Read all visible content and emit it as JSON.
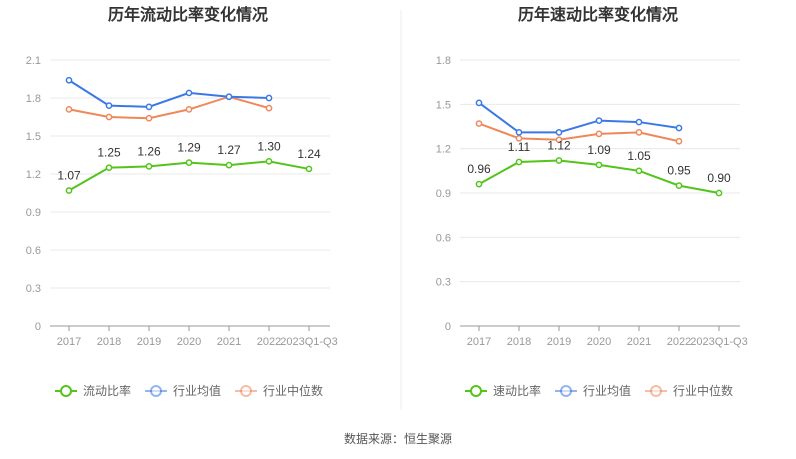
{
  "source": "数据来源：恒生聚源",
  "chart_data": [
    {
      "type": "line",
      "title": "历年流动比率变化情况",
      "categories": [
        "2017",
        "2018",
        "2019",
        "2020",
        "2021",
        "2022",
        "2023Q1-Q3"
      ],
      "ylim": [
        0,
        2.1
      ],
      "yticks": [
        "0",
        "0.3",
        "0.6",
        "0.9",
        "1.2",
        "1.5",
        "1.8",
        "2.1"
      ],
      "grid": true,
      "legend_position": "bottom-left",
      "series": [
        {
          "name": "流动比率",
          "color": "#52c41a",
          "values": [
            1.07,
            1.25,
            1.26,
            1.29,
            1.27,
            1.3,
            1.24
          ],
          "labels": [
            "1.07",
            "1.25",
            "1.26",
            "1.29",
            "1.27",
            "1.30",
            "1.24"
          ]
        },
        {
          "name": "行业均值",
          "color": "#3b78e7",
          "values": [
            1.94,
            1.74,
            1.73,
            1.84,
            1.81,
            1.8,
            null
          ]
        },
        {
          "name": "行业中位数",
          "color": "#f0875a",
          "values": [
            1.71,
            1.65,
            1.64,
            1.71,
            1.81,
            1.72,
            null
          ]
        }
      ]
    },
    {
      "type": "line",
      "title": "历年速动比率变化情况",
      "categories": [
        "2017",
        "2018",
        "2019",
        "2020",
        "2021",
        "2022",
        "2023Q1-Q3"
      ],
      "ylim": [
        0,
        1.8
      ],
      "yticks": [
        "0",
        "0.3",
        "0.6",
        "0.9",
        "1.2",
        "1.5",
        "1.8"
      ],
      "grid": true,
      "legend_position": "bottom-left",
      "series": [
        {
          "name": "速动比率",
          "color": "#52c41a",
          "values": [
            0.96,
            1.11,
            1.12,
            1.09,
            1.05,
            0.95,
            0.9
          ],
          "labels": [
            "0.96",
            "1.11",
            "1.12",
            "1.09",
            "1.05",
            "0.95",
            "0.90"
          ]
        },
        {
          "name": "行业均值",
          "color": "#3b78e7",
          "values": [
            1.51,
            1.31,
            1.31,
            1.39,
            1.38,
            1.34,
            null
          ]
        },
        {
          "name": "行业中位数",
          "color": "#f0875a",
          "values": [
            1.37,
            1.27,
            1.26,
            1.3,
            1.31,
            1.25,
            null
          ]
        }
      ]
    }
  ]
}
